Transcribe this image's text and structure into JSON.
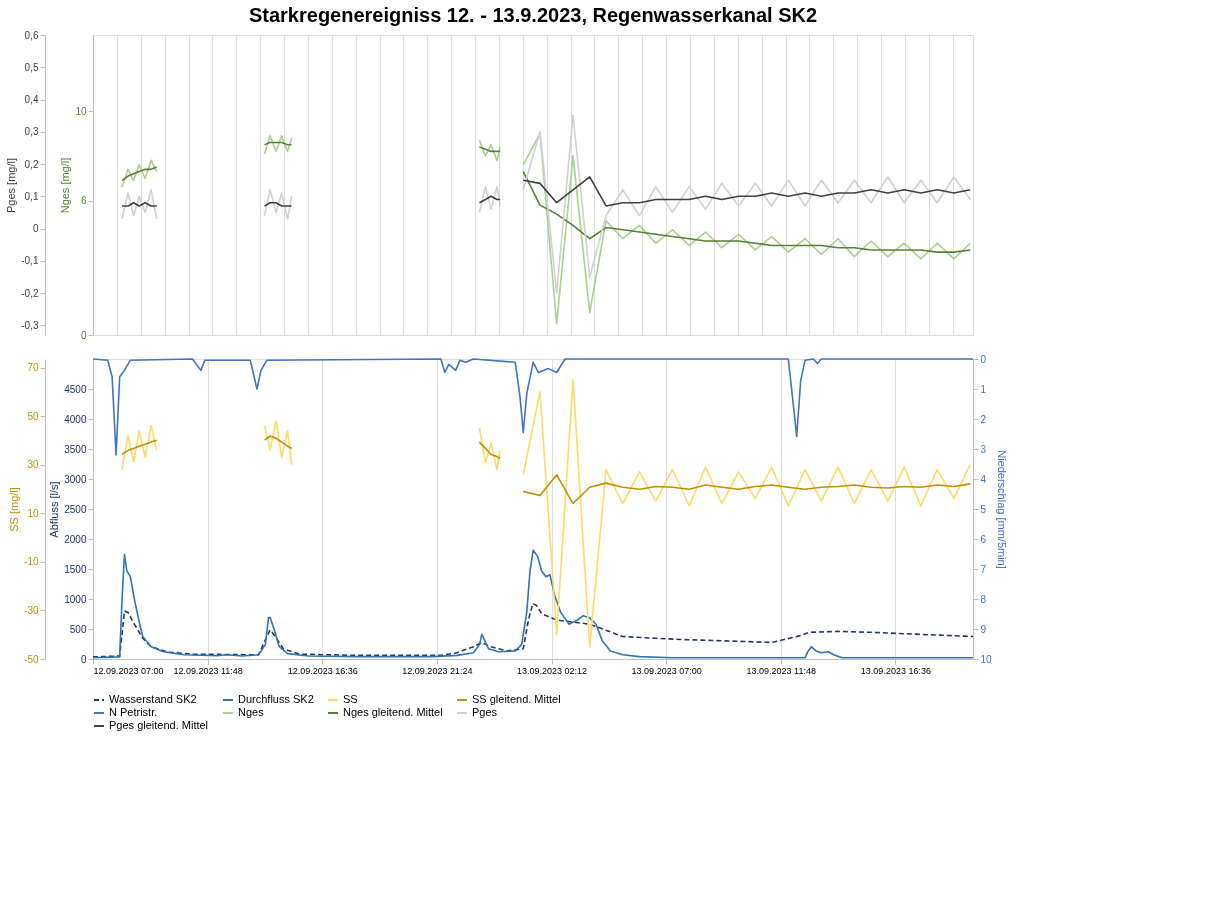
{
  "chart_data": [
    {
      "type": "line",
      "ylabel": "Abfluss [l/s]",
      "y2label": "Niederschlag [mm/5min]",
      "y3label": "SS [mg/l]",
      "xlim": [
        "2023-09-12T07:00",
        "2023-09-13T19:51"
      ],
      "xticks": [
        {
          "value": "2023-09-12T07:00",
          "label": "12.09.2023 07:00"
        },
        {
          "value": "2023-09-12T11:48",
          "label": "12.09.2023 11:48"
        },
        {
          "value": "2023-09-12T16:36",
          "label": "12.09.2023 16:36"
        },
        {
          "value": "2023-09-12T21:24",
          "label": "12.09.2023 21:24"
        },
        {
          "value": "2023-09-13T02:12",
          "label": "13.09.2023 02:12"
        },
        {
          "value": "2023-09-13T07:00",
          "label": "13.09.2023 07:00"
        },
        {
          "value": "2023-09-13T11:48",
          "label": "13.09.2023 11:48"
        },
        {
          "value": "2023-09-13T16:36",
          "label": "13.09.2023 16:36"
        }
      ],
      "ylim": [
        0,
        5000
      ],
      "yticks": [
        0,
        500,
        1000,
        1500,
        2000,
        2500,
        3000,
        3500,
        4000,
        4500
      ],
      "y2lim": [
        10,
        0
      ],
      "y2ticks": [
        0,
        1,
        2,
        3,
        4,
        5,
        6,
        7,
        8,
        9,
        10
      ],
      "y3lim": [
        -50,
        73.5
      ],
      "y3ticks": [
        -50,
        -30,
        -10,
        10,
        30,
        50,
        70
      ],
      "grid": "x",
      "legend": "bottom",
      "x": [
        "2023-09-12T08:13",
        "2023-09-12T08:28",
        "2023-09-12T08:42",
        "2023-09-12T08:56",
        "2023-09-12T09:11",
        "2023-09-12T09:26",
        "2023-09-12T09:40",
        "2023-09-12T10:30",
        "2023-09-12T14:11",
        "2023-09-12T14:25",
        "2023-09-12T14:40",
        "2023-09-12T14:54",
        "2023-09-12T15:09",
        "2023-09-12T15:19",
        "2023-09-12T18:00",
        "2023-09-12T23:11",
        "2023-09-12T23:26",
        "2023-09-12T23:40",
        "2023-09-12T23:55",
        "2023-09-13T00:03",
        "2023-09-13T00:30",
        "2023-09-13T01:01",
        "2023-09-13T01:43",
        "2023-09-13T02:25",
        "2023-09-13T03:06",
        "2023-09-13T03:48",
        "2023-09-13T04:29",
        "2023-09-13T05:11",
        "2023-09-13T05:53",
        "2023-09-13T06:34",
        "2023-09-13T07:16",
        "2023-09-13T07:58",
        "2023-09-13T08:39",
        "2023-09-13T09:20",
        "2023-09-13T10:02",
        "2023-09-13T10:44",
        "2023-09-13T11:25",
        "2023-09-13T12:07",
        "2023-09-13T12:49",
        "2023-09-13T13:30",
        "2023-09-13T14:12",
        "2023-09-13T14:53",
        "2023-09-13T15:35",
        "2023-09-13T16:17",
        "2023-09-13T16:58",
        "2023-09-13T17:40",
        "2023-09-13T18:21",
        "2023-09-13T19:03",
        "2023-09-13T19:44"
      ],
      "series": [
        {
          "name": "Wasserstand SK2",
          "color": "#1f3864",
          "line_style": "dashed",
          "x": [
            "2023-09-12T07:00",
            "2023-09-12T08:07",
            "2023-09-12T08:19",
            "2023-09-12T08:28",
            "2023-09-12T08:44",
            "2023-09-12T09:05",
            "2023-09-12T09:26",
            "2023-09-12T10:07",
            "2023-09-12T11:10",
            "2023-09-12T13:56",
            "2023-09-12T14:17",
            "2023-09-12T14:25",
            "2023-09-12T14:38",
            "2023-09-12T14:58",
            "2023-09-12T15:40",
            "2023-09-12T18:05",
            "2023-09-12T21:34",
            "2023-09-12T22:15",
            "2023-09-12T22:56",
            "2023-09-12T23:17",
            "2023-09-12T23:38",
            "2023-09-13T00:20",
            "2023-09-13T01:01",
            "2023-09-13T01:14",
            "2023-09-13T01:25",
            "2023-09-13T01:35",
            "2023-09-13T01:47",
            "2023-09-13T02:25",
            "2023-09-13T03:48",
            "2023-09-13T05:11",
            "2023-09-13T06:34",
            "2023-09-13T07:58",
            "2023-09-13T10:02",
            "2023-09-13T11:25",
            "2023-09-13T12:38",
            "2023-09-13T12:59",
            "2023-09-13T14:12",
            "2023-09-13T15:35",
            "2023-09-13T17:40",
            "2023-09-13T19:51"
          ],
          "values": [
            35,
            50,
            800,
            775,
            580,
            345,
            205,
            115,
            80,
            70,
            375,
            485,
            375,
            170,
            80,
            60,
            60,
            105,
            205,
            275,
            205,
            135,
            170,
            650,
            925,
            890,
            755,
            650,
            580,
            375,
            345,
            320,
            295,
            275,
            390,
            445,
            460,
            445,
            410,
            375
          ]
        },
        {
          "name": "Durchfluss SK2",
          "color": "#2e75b6",
          "line_style": "solid",
          "x": [
            "2023-09-12T07:00",
            "2023-09-12T08:07",
            "2023-09-12T08:13",
            "2023-09-12T08:19",
            "2023-09-12T08:25",
            "2023-09-12T08:34",
            "2023-09-12T08:44",
            "2023-09-12T08:55",
            "2023-09-12T09:05",
            "2023-09-12T09:26",
            "2023-09-12T09:57",
            "2023-09-12T10:49",
            "2023-09-12T12:12",
            "2023-09-12T12:33",
            "2023-09-12T13:14",
            "2023-09-12T13:56",
            "2023-09-12T14:13",
            "2023-09-12T14:21",
            "2023-09-12T14:25",
            "2023-09-12T14:34",
            "2023-09-12T14:48",
            "2023-09-12T15:09",
            "2023-09-12T16:01",
            "2023-09-12T18:05",
            "2023-09-12T21:13",
            "2023-09-12T22:15",
            "2023-09-12T22:56",
            "2023-09-12T23:11",
            "2023-09-12T23:17",
            "2023-09-12T23:24",
            "2023-09-12T23:34",
            "2023-09-12T23:59",
            "2023-09-13T00:41",
            "2023-09-13T00:57",
            "2023-09-13T01:10",
            "2023-09-13T01:18",
            "2023-09-13T01:26",
            "2023-09-13T01:37",
            "2023-09-13T01:47",
            "2023-09-13T01:58",
            "2023-09-13T02:08",
            "2023-09-13T02:20",
            "2023-09-13T02:35",
            "2023-09-13T02:56",
            "2023-09-13T03:17",
            "2023-09-13T03:31",
            "2023-09-13T03:48",
            "2023-09-13T04:04",
            "2023-09-13T04:19",
            "2023-09-13T04:40",
            "2023-09-13T05:11",
            "2023-09-13T05:53",
            "2023-09-13T07:16",
            "2023-09-13T12:49",
            "2023-09-13T12:57",
            "2023-09-13T13:05",
            "2023-09-13T13:16",
            "2023-09-13T13:30",
            "2023-09-13T13:47",
            "2023-09-13T14:01",
            "2023-09-13T14:22",
            "2023-09-13T19:51"
          ],
          "values": [
            20,
            35,
            995,
            1745,
            1470,
            1370,
            995,
            650,
            375,
            205,
            120,
            70,
            55,
            70,
            50,
            70,
            240,
            690,
            690,
            515,
            205,
            90,
            50,
            40,
            40,
            60,
            105,
            240,
            410,
            310,
            170,
            120,
            135,
            240,
            790,
            1470,
            1815,
            1710,
            1470,
            1370,
            1405,
            1060,
            780,
            580,
            650,
            720,
            685,
            580,
            310,
            135,
            70,
            40,
            20,
            20,
            135,
            205,
            135,
            105,
            120,
            70,
            20,
            20
          ]
        },
        {
          "name": "SS",
          "color": "#ffd966",
          "line_style": "solid",
          "axis": "y3",
          "values": [
            28,
            42,
            31,
            44,
            33,
            46,
            36,
            null,
            46,
            36,
            48,
            33,
            44,
            30,
            null,
            45,
            31,
            39,
            28,
            36,
            null,
            26,
            60,
            -40,
            65,
            -45,
            28,
            14,
            27,
            15,
            28,
            13,
            29,
            14,
            27,
            16,
            29,
            13,
            28,
            15,
            29,
            14,
            28,
            15,
            29,
            13,
            28,
            16,
            30
          ]
        },
        {
          "name": "SS gleitend. Mittel",
          "color": "#bf9000",
          "line_style": "solid",
          "axis": "y3",
          "values": [
            34.2,
            35.9,
            36.7,
            37.6,
            38.4,
            39.3,
            40.1,
            null,
            40.1,
            41.8,
            40.9,
            39.3,
            37.6,
            36.7,
            null,
            39.3,
            36.7,
            34.2,
            33.4,
            32.5,
            null,
            19.0,
            17.3,
            25.8,
            14.0,
            20.7,
            22.4,
            20.7,
            19.9,
            21.0,
            20.7,
            19.9,
            21.6,
            20.7,
            19.9,
            21.0,
            21.6,
            20.7,
            19.9,
            20.7,
            21.0,
            21.6,
            20.7,
            20.4,
            21.0,
            20.7,
            21.6,
            21.0,
            22.1
          ]
        },
        {
          "name": "N Petristr.",
          "color": "#4472c4",
          "line_style": "solid",
          "axis": "y2",
          "x": [
            "2023-09-12T07:00",
            "2023-09-12T07:37",
            "2023-09-12T07:48",
            "2023-09-12T07:58",
            "2023-09-12T08:07",
            "2023-09-12T08:19",
            "2023-09-12T08:34",
            "2023-09-12T11:10",
            "2023-09-12T11:31",
            "2023-09-12T11:41",
            "2023-09-12T13:35",
            "2023-09-12T13:46",
            "2023-09-12T13:52",
            "2023-09-12T14:02",
            "2023-09-12T14:17",
            "2023-09-12T21:34",
            "2023-09-12T21:44",
            "2023-09-12T21:54",
            "2023-09-12T22:11",
            "2023-09-12T22:22",
            "2023-09-12T22:36",
            "2023-09-12T22:56",
            "2023-09-13T00:41",
            "2023-09-13T00:53",
            "2023-09-13T01:01",
            "2023-09-13T01:10",
            "2023-09-13T01:26",
            "2023-09-13T01:39",
            "2023-09-13T02:04",
            "2023-09-13T02:25",
            "2023-09-13T02:46",
            "2023-09-13T12:07",
            "2023-09-13T12:22",
            "2023-09-13T12:28",
            "2023-09-13T12:38",
            "2023-09-13T12:49",
            "2023-09-13T13:10",
            "2023-09-13T13:20",
            "2023-09-13T13:30",
            "2023-09-13T19:51"
          ],
          "values": [
            0,
            0.04,
            0.59,
            3.2,
            0.59,
            0.38,
            0.04,
            0,
            0.38,
            0.04,
            0.04,
            0.66,
            1.0,
            0.38,
            0.04,
            0,
            0.45,
            0.18,
            0.38,
            0.04,
            0.11,
            0,
            0.11,
            1.28,
            2.45,
            1.14,
            0.11,
            0.45,
            0.32,
            0.45,
            0,
            0,
            1.83,
            2.58,
            0.73,
            0.04,
            0,
            0.15,
            0,
            0
          ]
        }
      ]
    },
    {
      "type": "line",
      "title": "Starkregenereigniss 12. - 13.9.2023, Regenwasserkanal SK2",
      "ylabel": "Nges [mg/l]",
      "y2label": "Pges [mg/l]",
      "tick_labels": "y",
      "grid": "x",
      "legend": "bottom",
      "xlim": [
        "2023-09-12T07:00",
        "2023-09-13T19:51"
      ],
      "ylim": [
        0,
        13.4
      ],
      "yticks": [
        0,
        6,
        10
      ],
      "y2lim": [
        -0.33,
        0.6
      ],
      "y2ticks": [
        {
          "value": -0.3,
          "label": "-0,3"
        },
        {
          "value": -0.2,
          "label": "-0,2"
        },
        {
          "value": -0.1,
          "label": "-0,1"
        },
        {
          "value": 0,
          "label": "0"
        },
        {
          "value": 0.1,
          "label": "0,1"
        },
        {
          "value": 0.2,
          "label": "0,2"
        },
        {
          "value": 0.3,
          "label": "0,3"
        },
        {
          "value": 0.4,
          "label": "0,4"
        },
        {
          "value": 0.5,
          "label": "0,5"
        },
        {
          "value": 0.6,
          "label": "0,6"
        }
      ],
      "x": [
        "2023-09-12T08:13",
        "2023-09-12T08:28",
        "2023-09-12T08:42",
        "2023-09-12T08:56",
        "2023-09-12T09:11",
        "2023-09-12T09:26",
        "2023-09-12T09:40",
        "2023-09-12T10:30",
        "2023-09-12T14:11",
        "2023-09-12T14:25",
        "2023-09-12T14:40",
        "2023-09-12T14:54",
        "2023-09-12T15:09",
        "2023-09-12T15:19",
        "2023-09-12T18:00",
        "2023-09-12T23:11",
        "2023-09-12T23:26",
        "2023-09-12T23:40",
        "2023-09-12T23:55",
        "2023-09-13T00:03",
        "2023-09-13T00:30",
        "2023-09-13T01:01",
        "2023-09-13T01:43",
        "2023-09-13T02:25",
        "2023-09-13T03:06",
        "2023-09-13T03:48",
        "2023-09-13T04:29",
        "2023-09-13T05:11",
        "2023-09-13T05:53",
        "2023-09-13T06:34",
        "2023-09-13T07:16",
        "2023-09-13T07:58",
        "2023-09-13T08:39",
        "2023-09-13T09:20",
        "2023-09-13T10:02",
        "2023-09-13T10:44",
        "2023-09-13T11:25",
        "2023-09-13T12:07",
        "2023-09-13T12:49",
        "2023-09-13T13:30",
        "2023-09-13T14:12",
        "2023-09-13T14:53",
        "2023-09-13T15:35",
        "2023-09-13T16:17",
        "2023-09-13T16:58",
        "2023-09-13T17:40",
        "2023-09-13T18:21",
        "2023-09-13T19:03",
        "2023-09-13T19:44"
      ],
      "series": [
        {
          "name": "Nges",
          "color": "#a9d08e",
          "line_style": "solid",
          "values": [
            6.6,
            7.4,
            6.9,
            7.6,
            7.0,
            7.8,
            7.3,
            null,
            8.1,
            8.9,
            8.2,
            8.9,
            8.2,
            8.8,
            null,
            8.7,
            8.0,
            8.5,
            7.8,
            8.4,
            null,
            7.6,
            9.0,
            0.5,
            8.0,
            1.0,
            5.1,
            4.3,
            4.9,
            4.1,
            4.7,
            4.0,
            4.6,
            3.9,
            4.5,
            3.8,
            4.4,
            3.7,
            4.3,
            3.6,
            4.3,
            3.5,
            4.2,
            3.5,
            4.1,
            3.4,
            4.1,
            3.4,
            4.1
          ]
        },
        {
          "name": "Nges gleitend. Mittel",
          "color": "#548235",
          "line_style": "solid",
          "values": [
            6.9,
            7.1,
            7.2,
            7.3,
            7.4,
            7.4,
            7.5,
            null,
            8.5,
            8.6,
            8.6,
            8.6,
            8.5,
            8.5,
            null,
            8.4,
            8.3,
            8.2,
            8.2,
            8.2,
            null,
            7.3,
            5.8,
            5.4,
            4.9,
            4.3,
            4.8,
            4.7,
            4.6,
            4.5,
            4.4,
            4.3,
            4.2,
            4.2,
            4.2,
            4.1,
            4.0,
            4.0,
            4.0,
            4.0,
            3.9,
            3.9,
            3.8,
            3.8,
            3.8,
            3.8,
            3.7,
            3.7,
            3.8
          ]
        },
        {
          "name": "Pges",
          "color": "#d0d0d0",
          "line_style": "solid",
          "axis": "y2",
          "values": [
            0.03,
            0.11,
            0.04,
            0.1,
            0.05,
            0.12,
            0.03,
            null,
            0.04,
            0.12,
            0.05,
            0.11,
            0.03,
            0.1,
            null,
            0.05,
            0.13,
            0.06,
            0.13,
            0.07,
            null,
            0.12,
            0.3,
            -0.2,
            0.35,
            -0.15,
            0.04,
            0.12,
            0.04,
            0.13,
            0.05,
            0.13,
            0.06,
            0.14,
            0.07,
            0.14,
            0.07,
            0.15,
            0.07,
            0.15,
            0.08,
            0.15,
            0.08,
            0.16,
            0.08,
            0.15,
            0.08,
            0.16,
            0.09
          ]
        },
        {
          "name": "Pges gleitend. Mittel",
          "color": "#404040",
          "line_style": "solid",
          "axis": "y2",
          "values": [
            0.07,
            0.07,
            0.08,
            0.07,
            0.08,
            0.07,
            0.07,
            null,
            0.07,
            0.08,
            0.08,
            0.07,
            0.07,
            0.07,
            null,
            0.08,
            0.09,
            0.1,
            0.09,
            0.09,
            null,
            0.15,
            0.14,
            0.08,
            0.12,
            0.16,
            0.07,
            0.08,
            0.08,
            0.09,
            0.09,
            0.09,
            0.1,
            0.09,
            0.1,
            0.1,
            0.11,
            0.1,
            0.11,
            0.1,
            0.11,
            0.11,
            0.12,
            0.11,
            0.12,
            0.11,
            0.12,
            0.11,
            0.12
          ]
        }
      ]
    }
  ]
}
